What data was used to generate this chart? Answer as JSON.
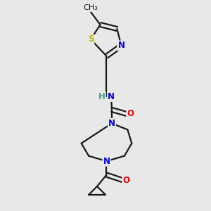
{
  "background_color": "#e8e8e8",
  "bond_color": "#1a1a1a",
  "atom_colors": {
    "N": "#0000ee",
    "O": "#ee0000",
    "S": "#bbbb00",
    "C": "#1a1a1a",
    "H": "#4a9a8a"
  },
  "lw": 1.6,
  "fs": 8.5,
  "xlim": [
    0,
    10
  ],
  "ylim": [
    0,
    10
  ]
}
